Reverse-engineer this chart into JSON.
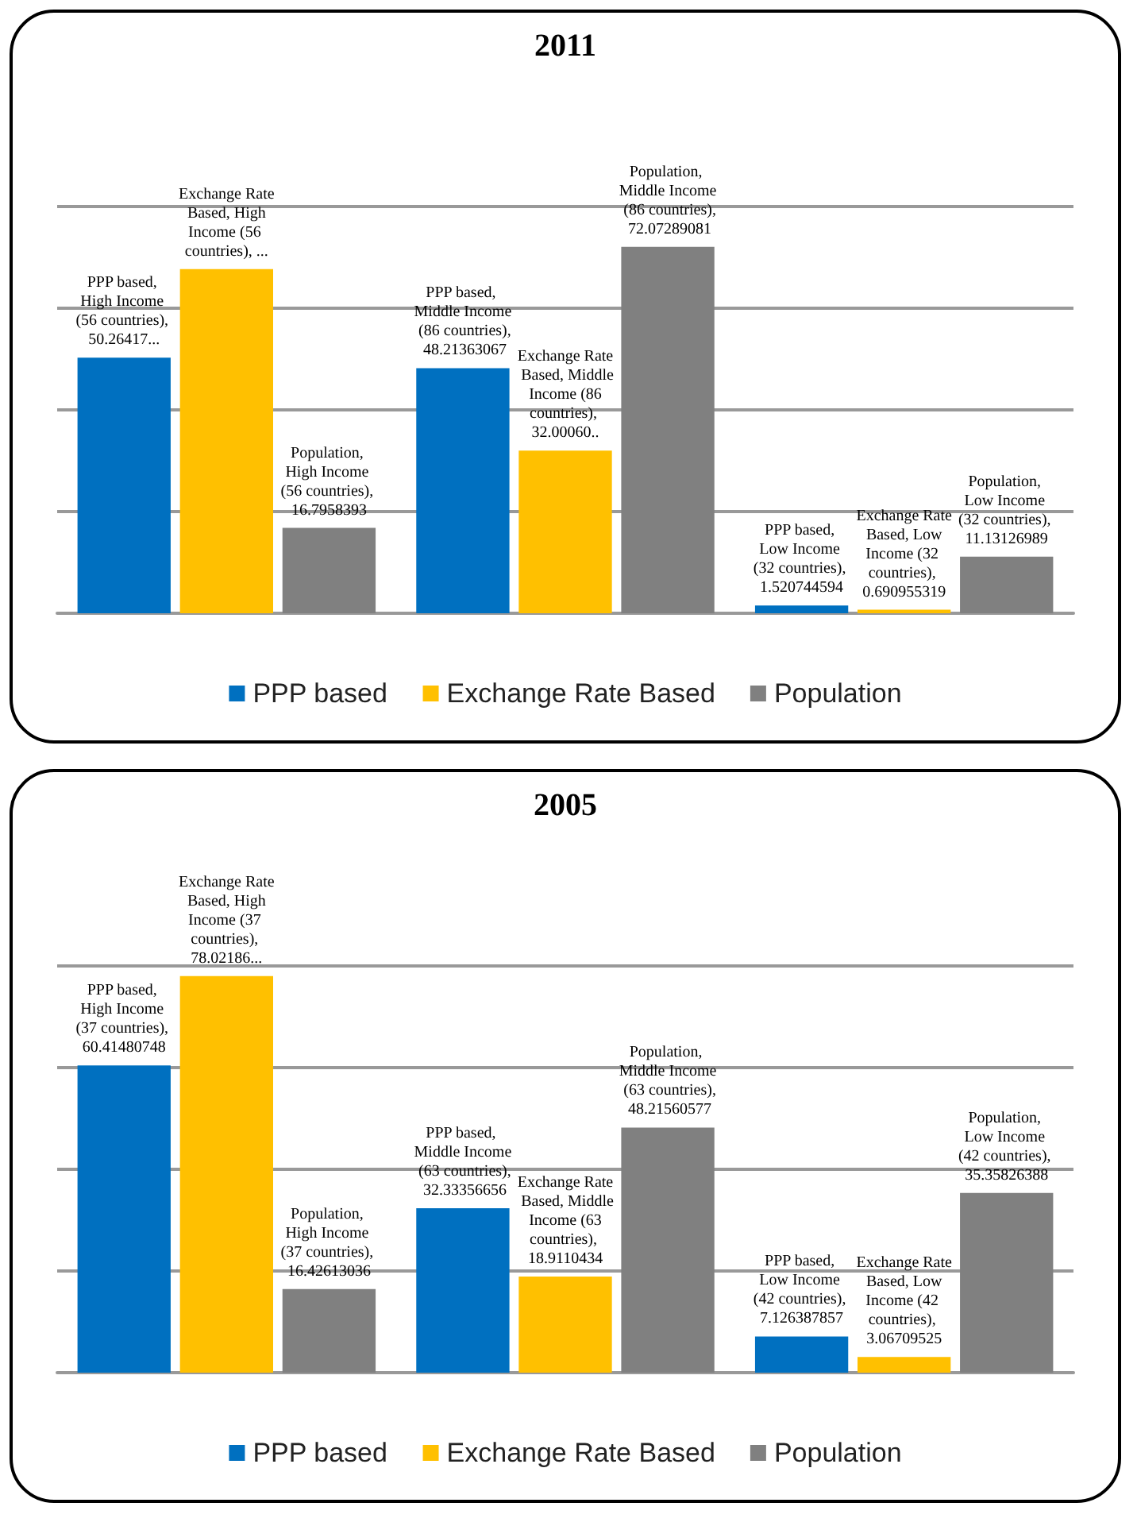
{
  "chart_data": [
    {
      "type": "bar",
      "title": "2011",
      "categories": [
        null,
        null,
        null
      ],
      "series": [
        {
          "name": "PPP based",
          "color": "#0070c0",
          "values": [
            50.26417,
            48.21363067,
            1.520744594
          ],
          "value_labels": [
            "PPP based, High Income (56 countries), 50.26417...",
            "PPP based, Middle Income (86 countries), 48.21363067",
            "PPP based, Low Income (32 countries), 1.520744594"
          ]
        },
        {
          "name": "Exchange Rate Based",
          "color": "#ffc000",
          "values": [
            67.7,
            32.0006,
            0.690955319
          ],
          "value_labels": [
            "Exchange Rate Based, High Income (56 countries), ...",
            "Exchange Rate Based, Middle Income (86 countries), 32.00060..",
            "Exchange Rate Based, Low Income (32 countries), 0.690955319"
          ]
        },
        {
          "name": "Population",
          "color": "#808080",
          "values": [
            16.7958393,
            72.07289081,
            11.13126989
          ],
          "value_labels": [
            "Population, High Income (56 countries), 16.7958393",
            "Population, Middle Income (86 countries), 72.07289081",
            "Population, Low Income (32 countries), 11.13126989"
          ]
        }
      ],
      "ylim": [
        0,
        80
      ],
      "yticks": [
        {
          "value": 0,
          "label": null
        },
        {
          "value": 20,
          "label": null
        },
        {
          "value": 40,
          "label": null
        },
        {
          "value": 60,
          "label": null
        },
        {
          "value": 80,
          "label": null
        }
      ],
      "grid": "y",
      "legend": "bottom"
    },
    {
      "type": "bar",
      "title": "2005",
      "categories": [
        null,
        null,
        null
      ],
      "series": [
        {
          "name": "PPP based",
          "color": "#0070c0",
          "values": [
            60.41480748,
            32.33356656,
            7.126387857
          ],
          "value_labels": [
            "PPP based, High Income (37 countries), 60.41480748",
            "PPP based, Middle Income (63 countries), 32.33356656",
            "PPP based, Low Income (42 countries), 7.126387857"
          ]
        },
        {
          "name": "Exchange Rate Based",
          "color": "#ffc000",
          "values": [
            78.02186,
            18.9110434,
            3.06709525
          ],
          "value_labels": [
            "Exchange Rate Based, High Income (37 countries), 78.02186...",
            "Exchange Rate Based, Middle Income (63 countries), 18.9110434",
            "Exchange Rate Based, Low Income (42 countries), 3.06709525"
          ]
        },
        {
          "name": "Population",
          "color": "#808080",
          "values": [
            16.42613036,
            48.21560577,
            35.35826388
          ],
          "value_labels": [
            "Population, High Income (37 countries), 16.42613036",
            "Population, Middle Income (63 countries), 48.21560577",
            "Population, Low Income (42 countries), 35.35826388"
          ]
        }
      ],
      "ylim": [
        0,
        80
      ],
      "yticks": [
        {
          "value": 0,
          "label": null
        },
        {
          "value": 20,
          "label": null
        },
        {
          "value": 40,
          "label": null
        },
        {
          "value": 60,
          "label": null
        },
        {
          "value": 80,
          "label": null
        }
      ],
      "grid": "y",
      "legend": "bottom"
    }
  ]
}
